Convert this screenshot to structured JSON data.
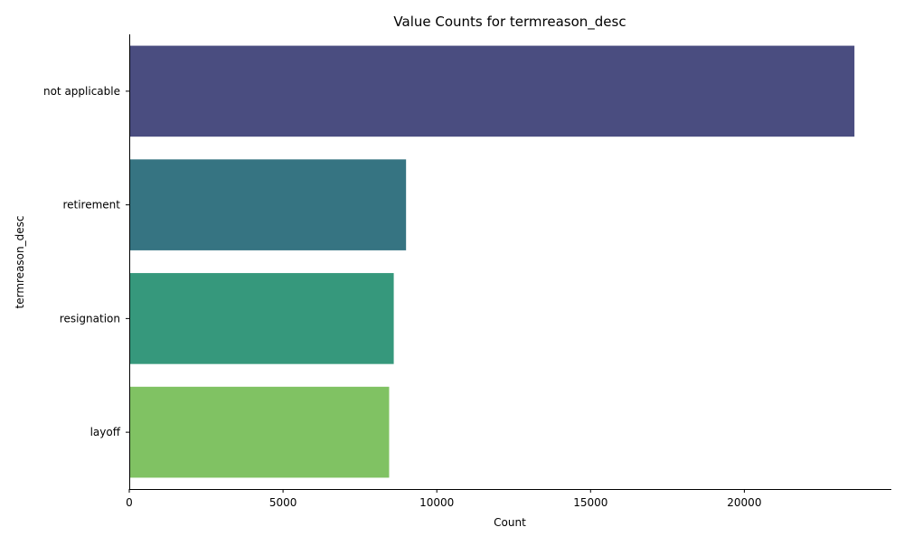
{
  "chart_data": {
    "type": "bar",
    "orientation": "horizontal",
    "title": "Value Counts for termreason_desc",
    "xlabel": "Count",
    "ylabel": "termreason_desc",
    "categories": [
      "not applicable",
      "retirement",
      "resignation",
      "layoff"
    ],
    "values": [
      23580,
      9000,
      8600,
      8450
    ],
    "xlim": [
      0,
      24780
    ],
    "xticks": [
      0,
      5000,
      10000,
      15000,
      20000
    ],
    "grid": false,
    "legend": "none",
    "colors": [
      "#4a4d80",
      "#367482",
      "#36987c",
      "#80c263"
    ]
  }
}
